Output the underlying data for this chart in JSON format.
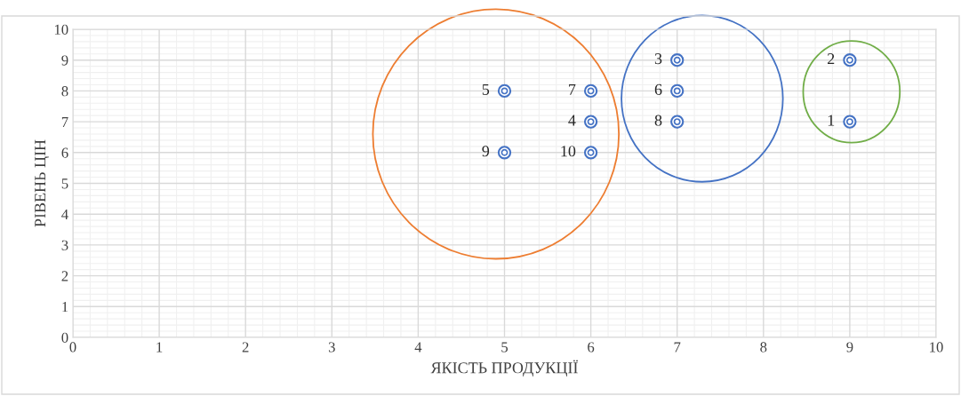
{
  "chart_data": {
    "type": "scatter",
    "xlabel": "ЯКІСТЬ ПРОДУКЦІЇ",
    "ylabel": "РІВЕНЬ ЦІН",
    "x": [
      9,
      9,
      7,
      6,
      5,
      7,
      6,
      7,
      5,
      6
    ],
    "values": [
      7,
      9,
      9,
      7,
      8,
      8,
      8,
      7,
      6,
      6
    ],
    "annotations": [
      {
        "text": "1",
        "x": 9,
        "y": 7
      },
      {
        "text": "2",
        "x": 9,
        "y": 9
      },
      {
        "text": "3",
        "x": 7,
        "y": 9
      },
      {
        "text": "4",
        "x": 6,
        "y": 7
      },
      {
        "text": "5",
        "x": 5,
        "y": 8
      },
      {
        "text": "6",
        "x": 7,
        "y": 8
      },
      {
        "text": "7",
        "x": 6,
        "y": 8
      },
      {
        "text": "8",
        "x": 7,
        "y": 7
      },
      {
        "text": "9",
        "x": 5,
        "y": 6
      },
      {
        "text": "10",
        "x": 6,
        "y": 6
      }
    ],
    "color": "#4472c4",
    "marker": "circle",
    "xlim": [
      0,
      10
    ],
    "xticks": [
      0,
      1,
      2,
      3,
      4,
      5,
      6,
      7,
      8,
      9,
      10
    ],
    "ylim": [
      0,
      10
    ],
    "yticks": [
      0,
      1,
      2,
      3,
      4,
      5,
      6,
      7,
      8,
      9,
      10
    ],
    "grid": true
  }
}
